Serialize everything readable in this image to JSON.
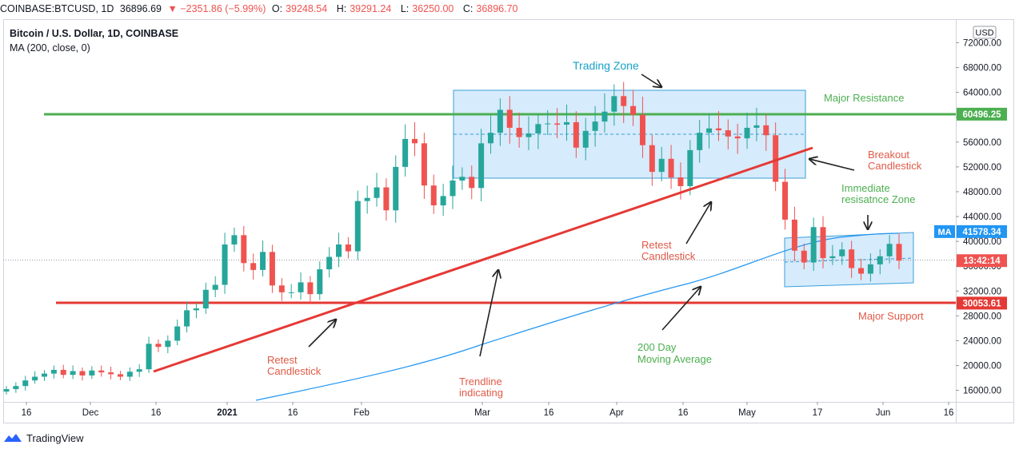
{
  "header": {
    "symbol": "COINBASE:BTCUSD, 1D",
    "price": "36896.69",
    "change": "▼ −2351.86 (−5.99%)",
    "o_label": "O:",
    "o_val": "39248.54",
    "h_label": "H:",
    "h_val": "39291.24",
    "l_label": "L:",
    "l_val": "36250.00",
    "c_label": "C:",
    "c_val": "36896.70"
  },
  "legend": {
    "title": "Bitcoin / U.S. Dollar, 1D, COINBASE",
    "indicator": "MA (200, close, 0)"
  },
  "footer": {
    "brand": "TradingView"
  },
  "colors": {
    "up": "#26a69a",
    "down": "#ef5350",
    "ma": "#2196f3",
    "resistance": "#4caf50",
    "support": "#e53935",
    "zone_fill": "#cfe8fb",
    "zone_stroke": "#3a9fd9",
    "annotation_blue": "#17a2c9",
    "annotation_green": "#4caf50",
    "annotation_red": "#e05a47"
  },
  "chart_data": {
    "type": "candlestick",
    "symbol": "BTCUSD",
    "currency": "USD",
    "ylim": [
      14000,
      74000
    ],
    "y_ticks": [
      "16000.00",
      "20000.00",
      "24000.00",
      "28000.00",
      "32000.00",
      "36000.00",
      "40000.00",
      "44000.00",
      "48000.00",
      "52000.00",
      "56000.00",
      "60000.00",
      "64000.00",
      "68000.00",
      "72000.00"
    ],
    "x_ticks": [
      "16",
      "Dec",
      "16",
      "2021",
      "16",
      "Feb",
      "Mar",
      "16",
      "Apr",
      "16",
      "May",
      "17",
      "Jun",
      "16"
    ],
    "price_labels": [
      {
        "text": "60496.25",
        "value": 60496.25,
        "color": "#4caf50"
      },
      {
        "text": "41578.34",
        "value": 41578.34,
        "color": "#2196f3",
        "tag": "MA"
      },
      {
        "text": "13:42:14",
        "value": 36896.7,
        "color": "#ef5350"
      },
      {
        "text": "30053.61",
        "value": 30053.61,
        "color": "#e53935"
      }
    ],
    "ma200": [
      [
        0,
        9000
      ],
      [
        100,
        13500
      ],
      [
        200,
        18500
      ],
      [
        300,
        22000
      ],
      [
        400,
        27000
      ],
      [
        500,
        31500
      ],
      [
        600,
        36500
      ],
      [
        700,
        40000
      ],
      [
        730,
        41578
      ]
    ],
    "candles_close": [
      16200,
      16700,
      17600,
      18200,
      18700,
      19300,
      18500,
      19100,
      18400,
      19200,
      18900,
      18600,
      18200,
      19000,
      19400,
      23500,
      23000,
      24000,
      26300,
      28900,
      29200,
      32200,
      33000,
      39500,
      41000,
      36500,
      35400,
      38300,
      32900,
      31800,
      31800,
      33400,
      31500,
      35500,
      37500,
      39500,
      38400,
      46500,
      47000,
      48700,
      45000,
      52000,
      56500,
      55800,
      49000,
      45800,
      47300,
      49800,
      50400,
      48600,
      55800,
      57500,
      61200,
      58300,
      56800,
      57400,
      58900,
      59000,
      58800,
      59200,
      55100,
      57800,
      59300,
      60900,
      63400,
      61800,
      60400,
      55500,
      51200,
      53300,
      50300,
      48900,
      54700,
      57500,
      58200,
      57900,
      56900,
      56600,
      58300,
      58700,
      57100,
      49600,
      43500,
      38500,
      36600,
      42300,
      37300,
      37600,
      38700,
      35700,
      34800,
      36300,
      37600,
      39600,
      36900
    ],
    "annotations": [
      {
        "text": "Trading Zone",
        "color": "#17a2c9"
      },
      {
        "text": "Major Resistance",
        "color": "#4caf50"
      },
      {
        "text": "Breakout",
        "color": "#e05a47"
      },
      {
        "text": "Candlestick",
        "color": "#e05a47"
      },
      {
        "text": "Immediate",
        "color": "#4caf50"
      },
      {
        "text": "resisatnce  Zone",
        "color": "#4caf50"
      },
      {
        "text": "Retest",
        "color": "#e05a47"
      },
      {
        "text": "Candlestick",
        "color": "#e05a47"
      },
      {
        "text": "Retest",
        "color": "#e05a47"
      },
      {
        "text": "Candlestick",
        "color": "#e05a47"
      },
      {
        "text": "Trendline",
        "color": "#e05a47"
      },
      {
        "text": "indicating",
        "color": "#e05a47"
      },
      {
        "text": "200 Day",
        "color": "#4caf50"
      },
      {
        "text": "Moving Average",
        "color": "#4caf50"
      },
      {
        "text": "Major Support",
        "color": "#e05a47"
      }
    ]
  }
}
